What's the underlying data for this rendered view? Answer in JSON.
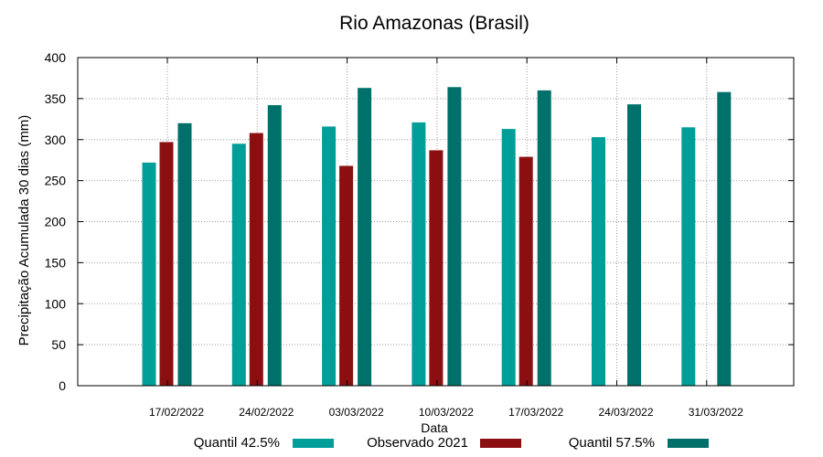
{
  "chart_data": {
    "type": "bar",
    "title": "Rio Amazonas (Brasil)",
    "xlabel": "Data",
    "ylabel": "Precipitação Acumulada 30 dias (mm)",
    "ylim": [
      0,
      400
    ],
    "yticks": [
      0,
      50,
      100,
      150,
      200,
      250,
      300,
      350,
      400
    ],
    "grid": true,
    "legend_position": "bottom",
    "categories": [
      "17/02/2022",
      "24/02/2022",
      "03/03/2022",
      "10/03/2022",
      "17/03/2022",
      "24/03/2022",
      "31/03/2022"
    ],
    "series": [
      {
        "name": "Quantil 42.5%",
        "color": "#009e99",
        "values": [
          272,
          295,
          316,
          321,
          313,
          303,
          315
        ]
      },
      {
        "name": "Observado 2021",
        "color": "#8b0f10",
        "values": [
          297,
          308,
          268,
          287,
          279,
          null,
          null
        ]
      },
      {
        "name": "Quantil 57.5%",
        "color": "#00706a",
        "values": [
          320,
          342,
          363,
          364,
          360,
          343,
          358
        ]
      }
    ]
  }
}
